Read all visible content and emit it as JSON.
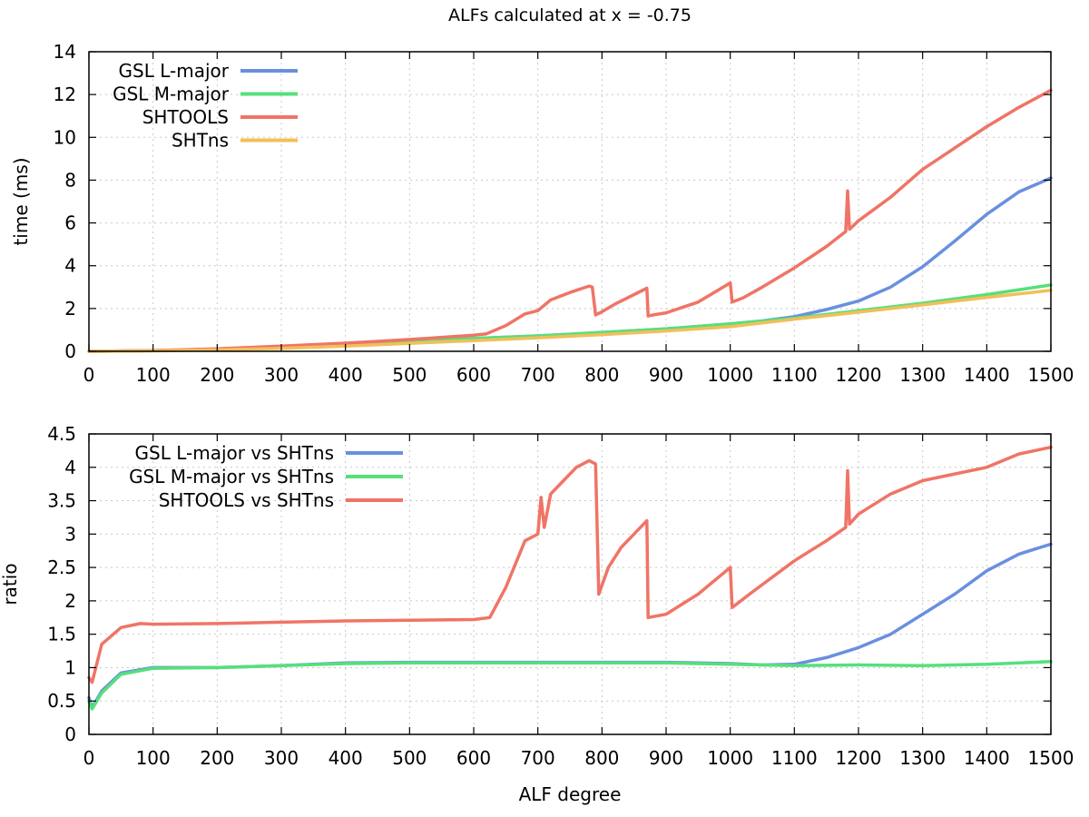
{
  "chart_data": [
    {
      "type": "line",
      "title": "ALFs calculated at x = -0.75",
      "xlabel": "",
      "ylabel": "time (ms)",
      "xlim": [
        0,
        1500
      ],
      "ylim": [
        0,
        14
      ],
      "xticks": [
        0,
        100,
        200,
        300,
        400,
        500,
        600,
        700,
        800,
        900,
        1000,
        1100,
        1200,
        1300,
        1400,
        1500
      ],
      "yticks": [
        0,
        2,
        4,
        6,
        8,
        10,
        12,
        14
      ],
      "grid": true,
      "legend_position": "top-left",
      "series": [
        {
          "name": "GSL L-major",
          "color": "#6a8fe0",
          "x": [
            0,
            100,
            200,
            300,
            400,
            500,
            600,
            700,
            800,
            900,
            1000,
            1050,
            1100,
            1150,
            1200,
            1250,
            1300,
            1350,
            1400,
            1450,
            1500
          ],
          "y": [
            0,
            0.03,
            0.09,
            0.18,
            0.3,
            0.45,
            0.6,
            0.72,
            0.88,
            1.05,
            1.28,
            1.42,
            1.62,
            1.95,
            2.35,
            3.0,
            3.95,
            5.15,
            6.4,
            7.45,
            8.1
          ]
        },
        {
          "name": "GSL M-major",
          "color": "#56e07a",
          "x": [
            0,
            100,
            200,
            300,
            400,
            500,
            600,
            700,
            800,
            900,
            1000,
            1100,
            1200,
            1300,
            1400,
            1500
          ],
          "y": [
            0,
            0.03,
            0.09,
            0.18,
            0.3,
            0.45,
            0.6,
            0.72,
            0.88,
            1.05,
            1.28,
            1.55,
            1.9,
            2.25,
            2.65,
            3.1
          ]
        },
        {
          "name": "SHTOOLS",
          "color": "#f07466",
          "x": [
            0,
            100,
            200,
            300,
            400,
            500,
            600,
            620,
            650,
            680,
            700,
            720,
            750,
            780,
            785,
            790,
            800,
            820,
            850,
            870,
            872,
            880,
            900,
            950,
            1000,
            1003,
            1020,
            1050,
            1100,
            1150,
            1180,
            1183,
            1186,
            1200,
            1250,
            1300,
            1350,
            1400,
            1450,
            1500
          ],
          "y": [
            0,
            0.04,
            0.12,
            0.24,
            0.38,
            0.55,
            0.75,
            0.82,
            1.2,
            1.75,
            1.9,
            2.4,
            2.75,
            3.05,
            3.0,
            1.7,
            1.85,
            2.2,
            2.65,
            2.95,
            1.65,
            1.7,
            1.8,
            2.3,
            3.2,
            2.3,
            2.5,
            3.0,
            3.9,
            4.9,
            5.6,
            7.5,
            5.7,
            6.1,
            7.2,
            8.5,
            9.5,
            10.5,
            11.4,
            12.2
          ]
        },
        {
          "name": "SHTns",
          "color": "#f2bf5a",
          "x": [
            0,
            100,
            200,
            300,
            400,
            500,
            600,
            700,
            800,
            900,
            1000,
            1100,
            1200,
            1300,
            1400,
            1500
          ],
          "y": [
            0,
            0.02,
            0.07,
            0.14,
            0.24,
            0.37,
            0.5,
            0.63,
            0.78,
            0.95,
            1.15,
            1.5,
            1.83,
            2.17,
            2.52,
            2.85
          ]
        }
      ]
    },
    {
      "type": "line",
      "title": "",
      "xlabel": "ALF degree",
      "ylabel": "ratio",
      "xlim": [
        0,
        1500
      ],
      "ylim": [
        0,
        4.5
      ],
      "xticks": [
        0,
        100,
        200,
        300,
        400,
        500,
        600,
        700,
        800,
        900,
        1000,
        1100,
        1200,
        1300,
        1400,
        1500
      ],
      "yticks": [
        0,
        0.5,
        1,
        1.5,
        2,
        2.5,
        3,
        3.5,
        4,
        4.5
      ],
      "grid": true,
      "legend_position": "top-left",
      "series": [
        {
          "name": "GSL L-major vs SHTns",
          "color": "#6a8fe0",
          "x": [
            0,
            5,
            20,
            50,
            100,
            200,
            300,
            400,
            500,
            600,
            700,
            800,
            900,
            1000,
            1050,
            1100,
            1150,
            1200,
            1250,
            1300,
            1350,
            1400,
            1450,
            1500
          ],
          "y": [
            0.55,
            0.4,
            0.65,
            0.92,
            1.0,
            1.0,
            1.03,
            1.07,
            1.08,
            1.08,
            1.08,
            1.08,
            1.08,
            1.06,
            1.04,
            1.05,
            1.15,
            1.3,
            1.5,
            1.8,
            2.1,
            2.45,
            2.7,
            2.85
          ]
        },
        {
          "name": "GSL M-major vs SHTns",
          "color": "#56e07a",
          "x": [
            0,
            5,
            20,
            50,
            100,
            200,
            300,
            400,
            500,
            600,
            700,
            800,
            900,
            1000,
            1100,
            1200,
            1300,
            1400,
            1500
          ],
          "y": [
            0.5,
            0.38,
            0.62,
            0.9,
            0.99,
            1.0,
            1.03,
            1.06,
            1.07,
            1.07,
            1.07,
            1.07,
            1.07,
            1.05,
            1.03,
            1.04,
            1.03,
            1.05,
            1.09
          ]
        },
        {
          "name": "SHTOOLS vs SHTns",
          "color": "#f07466",
          "x": [
            0,
            5,
            20,
            50,
            80,
            100,
            200,
            300,
            400,
            500,
            600,
            625,
            650,
            680,
            700,
            705,
            710,
            720,
            740,
            760,
            780,
            790,
            795,
            810,
            830,
            850,
            870,
            872,
            900,
            950,
            1000,
            1003,
            1030,
            1100,
            1150,
            1180,
            1183,
            1186,
            1200,
            1250,
            1300,
            1350,
            1400,
            1450,
            1500
          ],
          "y": [
            0.85,
            0.78,
            1.35,
            1.6,
            1.66,
            1.65,
            1.66,
            1.68,
            1.7,
            1.71,
            1.72,
            1.75,
            2.2,
            2.9,
            3.0,
            3.55,
            3.1,
            3.6,
            3.8,
            4.0,
            4.1,
            4.05,
            2.1,
            2.5,
            2.8,
            3.0,
            3.2,
            1.75,
            1.8,
            2.1,
            2.5,
            1.9,
            2.1,
            2.6,
            2.9,
            3.1,
            3.95,
            3.15,
            3.3,
            3.6,
            3.8,
            3.9,
            4.0,
            4.2,
            4.3
          ]
        }
      ]
    }
  ]
}
